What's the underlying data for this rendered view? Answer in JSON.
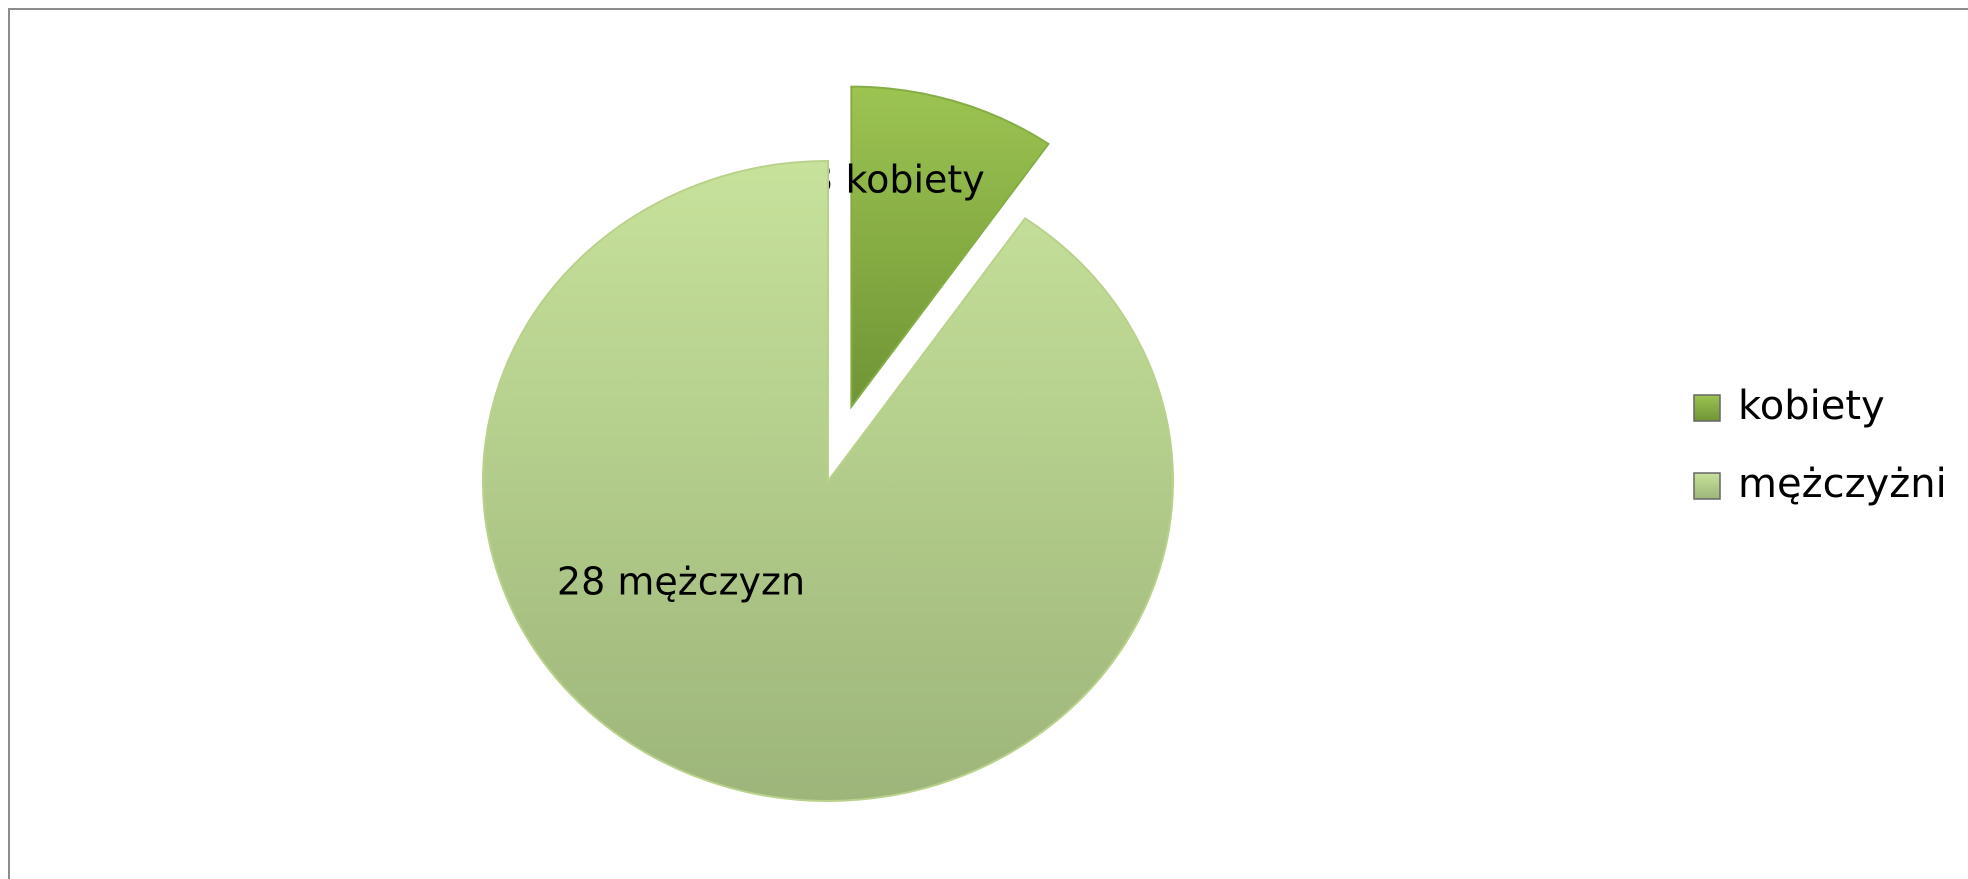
{
  "chart_data": {
    "type": "pie",
    "categories": [
      "kobiety",
      "mężczyżni"
    ],
    "values": [
      3,
      28
    ],
    "value_labels": [
      "3 kobiety",
      "28 mężczyzn"
    ],
    "colors": [
      "#86ad45",
      "#b9d18b"
    ],
    "legend": "right"
  }
}
